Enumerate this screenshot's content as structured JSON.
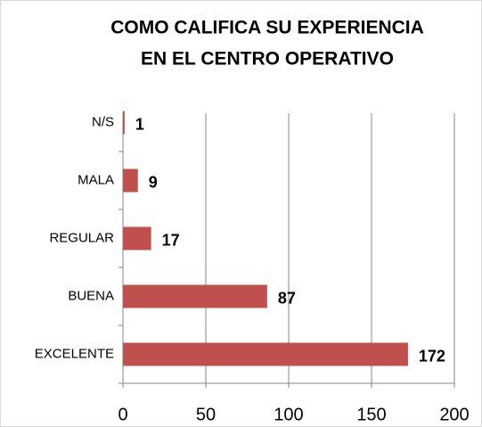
{
  "chart_data": {
    "type": "bar",
    "orientation": "horizontal",
    "title": [
      "COMO CALIFICA SU EXPERIENCIA",
      "EN EL CENTRO OPERATIVO"
    ],
    "categories": [
      "N/S",
      "MALA",
      "REGULAR",
      "BUENA",
      "EXCELENTE"
    ],
    "values": [
      1,
      9,
      17,
      87,
      172
    ],
    "color": "#c0504d",
    "xlim": [
      0,
      200
    ],
    "xticks": [
      0,
      50,
      100,
      150,
      200
    ],
    "grid": true
  }
}
